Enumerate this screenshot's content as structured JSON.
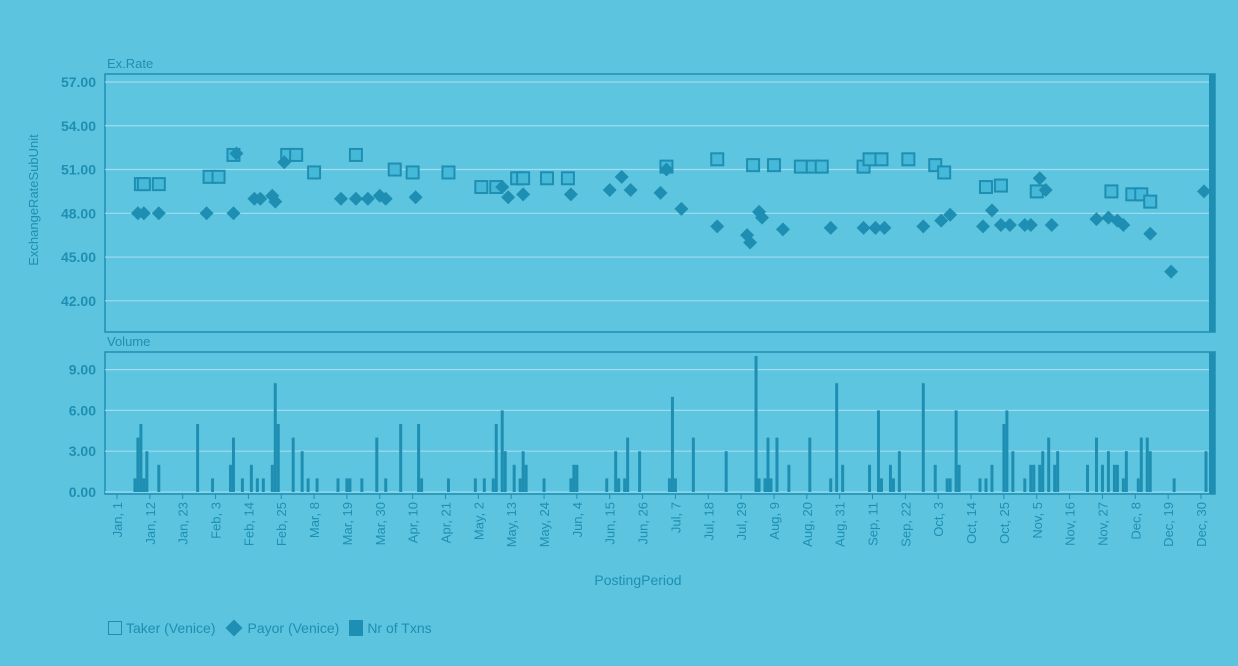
{
  "colors": {
    "background": "#5cc4df",
    "plot": "#5ec5e0",
    "accent": "#1e8fb2",
    "grid": "#9fdcee"
  },
  "chart_data": [
    {
      "type": "scatter",
      "panel_title": "Ex.Rate",
      "ylabel": "ExchangeRateSubUnit",
      "ylim": [
        40,
        57
      ],
      "yticks": [
        "42.00",
        "45.00",
        "48.00",
        "51.00",
        "54.00",
        "57.00"
      ],
      "grid": true,
      "series": [
        {
          "name": "Taker (Venice)",
          "marker": "square",
          "points": [
            [
              "Jan 9",
              50.0
            ],
            [
              "Jan 10",
              50.0
            ],
            [
              "Jan 15",
              50.0
            ],
            [
              "Feb 1",
              50.5
            ],
            [
              "Feb 4",
              50.5
            ],
            [
              "Feb 9",
              52.0
            ],
            [
              "Feb 27",
              52.0
            ],
            [
              "Mar 2",
              52.0
            ],
            [
              "Mar 8",
              50.8
            ],
            [
              "Mar 22",
              52.0
            ],
            [
              "Apr 4",
              51.0
            ],
            [
              "Apr 10",
              50.8
            ],
            [
              "Apr 22",
              50.8
            ],
            [
              "May 3",
              49.8
            ],
            [
              "May 8",
              49.8
            ],
            [
              "May 15",
              50.4
            ],
            [
              "May 17",
              50.4
            ],
            [
              "May 25",
              50.4
            ],
            [
              "Jun 1",
              50.4
            ],
            [
              "Jul 4",
              51.2
            ],
            [
              "Jul 21",
              51.7
            ],
            [
              "Aug 2",
              51.3
            ],
            [
              "Aug 9",
              51.3
            ],
            [
              "Aug 18",
              51.2
            ],
            [
              "Aug 22",
              51.2
            ],
            [
              "Aug 25",
              51.2
            ],
            [
              "Sep 8",
              51.2
            ],
            [
              "Sep 10",
              51.7
            ],
            [
              "Sep 14",
              51.7
            ],
            [
              "Sep 23",
              51.7
            ],
            [
              "Oct 2",
              51.3
            ],
            [
              "Oct 5",
              50.8
            ],
            [
              "Oct 19",
              49.8
            ],
            [
              "Oct 24",
              49.9
            ],
            [
              "Nov 5",
              49.5
            ],
            [
              "Nov 30",
              49.5
            ],
            [
              "Dec 7",
              49.3
            ],
            [
              "Dec 10",
              49.3
            ],
            [
              "Dec 13",
              48.8
            ]
          ]
        },
        {
          "name": "Payor (Venice)",
          "marker": "diamond",
          "points": [
            [
              "Jan 8",
              48.0
            ],
            [
              "Jan 10",
              48.0
            ],
            [
              "Jan 15",
              48.0
            ],
            [
              "Jan 31",
              48.0
            ],
            [
              "Feb 9",
              48.0
            ],
            [
              "Feb 10",
              52.1
            ],
            [
              "Feb 16",
              49.0
            ],
            [
              "Feb 18",
              49.0
            ],
            [
              "Feb 22",
              49.2
            ],
            [
              "Feb 23",
              48.8
            ],
            [
              "Feb 26",
              51.5
            ],
            [
              "Mar 17",
              49.0
            ],
            [
              "Mar 22",
              49.0
            ],
            [
              "Mar 26",
              49.0
            ],
            [
              "Mar 30",
              49.2
            ],
            [
              "Apr 1",
              49.0
            ],
            [
              "Apr 11",
              49.1
            ],
            [
              "May 10",
              49.8
            ],
            [
              "May 12",
              49.1
            ],
            [
              "May 17",
              49.3
            ],
            [
              "Jun 2",
              49.3
            ],
            [
              "Jun 15",
              49.6
            ],
            [
              "Jun 19",
              50.5
            ],
            [
              "Jun 22",
              49.6
            ],
            [
              "Jul 2",
              49.4
            ],
            [
              "Jul 4",
              51.0
            ],
            [
              "Jul 9",
              48.3
            ],
            [
              "Jul 21",
              47.1
            ],
            [
              "Jul 31",
              46.5
            ],
            [
              "Aug 1",
              46.0
            ],
            [
              "Aug 4",
              48.1
            ],
            [
              "Aug 5",
              47.7
            ],
            [
              "Aug 12",
              46.9
            ],
            [
              "Aug 28",
              47.0
            ],
            [
              "Sep 8",
              47.0
            ],
            [
              "Sep 12",
              47.0
            ],
            [
              "Sep 15",
              47.0
            ],
            [
              "Sep 28",
              47.1
            ],
            [
              "Oct 4",
              47.5
            ],
            [
              "Oct 7",
              47.9
            ],
            [
              "Oct 18",
              47.1
            ],
            [
              "Oct 21",
              48.2
            ],
            [
              "Oct 24",
              47.2
            ],
            [
              "Oct 27",
              47.2
            ],
            [
              "Nov 1",
              47.2
            ],
            [
              "Nov 3",
              47.2
            ],
            [
              "Nov 6",
              50.4
            ],
            [
              "Nov 8",
              49.6
            ],
            [
              "Nov 10",
              47.2
            ],
            [
              "Nov 25",
              47.6
            ],
            [
              "Nov 29",
              47.7
            ],
            [
              "Dec 2",
              47.5
            ],
            [
              "Dec 4",
              47.2
            ],
            [
              "Dec 13",
              46.6
            ],
            [
              "Dec 20",
              44.0
            ],
            [
              "Dec 31",
              49.5
            ]
          ]
        }
      ]
    },
    {
      "type": "bar",
      "panel_title": "Volume",
      "ylim": [
        0,
        10
      ],
      "yticks": [
        "0.00",
        "3.00",
        "6.00",
        "9.00"
      ],
      "grid": true,
      "series": [
        {
          "name": "Nr of Txns",
          "points": [
            [
              "Jan 7",
              1
            ],
            [
              "Jan 8",
              4
            ],
            [
              "Jan 9",
              5
            ],
            [
              "Jan 10",
              1
            ],
            [
              "Jan 11",
              3
            ],
            [
              "Jan 15",
              2
            ],
            [
              "Jan 28",
              5
            ],
            [
              "Feb 2",
              1
            ],
            [
              "Feb 8",
              2
            ],
            [
              "Feb 9",
              4
            ],
            [
              "Feb 12",
              1
            ],
            [
              "Feb 15",
              2
            ],
            [
              "Feb 17",
              1
            ],
            [
              "Feb 19",
              1
            ],
            [
              "Feb 22",
              2
            ],
            [
              "Feb 23",
              8
            ],
            [
              "Feb 24",
              5
            ],
            [
              "Mar 1",
              4
            ],
            [
              "Mar 4",
              3
            ],
            [
              "Mar 6",
              1
            ],
            [
              "Mar 9",
              1
            ],
            [
              "Mar 16",
              1
            ],
            [
              "Mar 19",
              1
            ],
            [
              "Mar 20",
              1
            ],
            [
              "Mar 24",
              1
            ],
            [
              "Mar 29",
              4
            ],
            [
              "Apr 1",
              1
            ],
            [
              "Apr 6",
              5
            ],
            [
              "Apr 12",
              5
            ],
            [
              "Apr 13",
              1
            ],
            [
              "Apr 22",
              1
            ],
            [
              "May 1",
              1
            ],
            [
              "May 4",
              1
            ],
            [
              "May 7",
              1
            ],
            [
              "May 8",
              5
            ],
            [
              "May 10",
              6
            ],
            [
              "May 11",
              3
            ],
            [
              "May 14",
              2
            ],
            [
              "May 16",
              1
            ],
            [
              "May 17",
              3
            ],
            [
              "May 18",
              2
            ],
            [
              "May 24",
              1
            ],
            [
              "Jun 2",
              1
            ],
            [
              "Jun 3",
              2
            ],
            [
              "Jun 4",
              2
            ],
            [
              "Jun 14",
              1
            ],
            [
              "Jun 17",
              3
            ],
            [
              "Jun 18",
              1
            ],
            [
              "Jun 20",
              1
            ],
            [
              "Jun 21",
              4
            ],
            [
              "Jun 25",
              3
            ],
            [
              "Jul 5",
              1
            ],
            [
              "Jul 6",
              7
            ],
            [
              "Jul 7",
              1
            ],
            [
              "Jul 13",
              4
            ],
            [
              "Jul 24",
              3
            ],
            [
              "Aug 3",
              10
            ],
            [
              "Aug 4",
              1
            ],
            [
              "Aug 6",
              1
            ],
            [
              "Aug 7",
              4
            ],
            [
              "Aug 8",
              1
            ],
            [
              "Aug 10",
              4
            ],
            [
              "Aug 14",
              2
            ],
            [
              "Aug 21",
              4
            ],
            [
              "Aug 28",
              1
            ],
            [
              "Aug 30",
              8
            ],
            [
              "Sep 1",
              2
            ],
            [
              "Sep 10",
              2
            ],
            [
              "Sep 13",
              6
            ],
            [
              "Sep 14",
              1
            ],
            [
              "Sep 17",
              2
            ],
            [
              "Sep 18",
              1
            ],
            [
              "Sep 20",
              3
            ],
            [
              "Sep 28",
              8
            ],
            [
              "Oct 2",
              2
            ],
            [
              "Oct 6",
              1
            ],
            [
              "Oct 7",
              1
            ],
            [
              "Oct 9",
              6
            ],
            [
              "Oct 10",
              2
            ],
            [
              "Oct 17",
              1
            ],
            [
              "Oct 19",
              1
            ],
            [
              "Oct 21",
              2
            ],
            [
              "Oct 25",
              5
            ],
            [
              "Oct 26",
              6
            ],
            [
              "Oct 28",
              3
            ],
            [
              "Nov 1",
              1
            ],
            [
              "Nov 3",
              2
            ],
            [
              "Nov 4",
              2
            ],
            [
              "Nov 6",
              2
            ],
            [
              "Nov 7",
              3
            ],
            [
              "Nov 9",
              4
            ],
            [
              "Nov 11",
              2
            ],
            [
              "Nov 12",
              3
            ],
            [
              "Nov 22",
              2
            ],
            [
              "Nov 25",
              4
            ],
            [
              "Nov 27",
              2
            ],
            [
              "Nov 29",
              3
            ],
            [
              "Dec 1",
              2
            ],
            [
              "Dec 2",
              2
            ],
            [
              "Dec 4",
              1
            ],
            [
              "Dec 5",
              3
            ],
            [
              "Dec 9",
              1
            ],
            [
              "Dec 10",
              4
            ],
            [
              "Dec 12",
              4
            ],
            [
              "Dec 13",
              3
            ],
            [
              "Dec 21",
              1
            ],
            [
              "Jan 1+",
              3
            ]
          ]
        }
      ]
    }
  ],
  "x_axis": {
    "label": "PostingPeriod",
    "ticks": [
      "Jan, 1",
      "Jan, 12",
      "Jan, 23",
      "Feb, 3",
      "Feb, 14",
      "Feb, 25",
      "Mar, 8",
      "Mar, 19",
      "Mar, 30",
      "Apr, 10",
      "Apr, 21",
      "May, 2",
      "May, 13",
      "May, 24",
      "Jun, 4",
      "Jun, 15",
      "Jun, 26",
      "Jul, 7",
      "Jul, 18",
      "Jul, 29",
      "Aug, 9",
      "Aug, 20",
      "Aug, 31",
      "Sep, 11",
      "Sep, 22",
      "Oct, 3",
      "Oct, 14",
      "Oct, 25",
      "Nov, 5",
      "Nov, 16",
      "Nov, 27",
      "Dec, 8",
      "Dec, 19",
      "Dec, 30"
    ]
  },
  "legend": {
    "position": "bottom-left",
    "items": [
      {
        "label": "Taker (Venice)",
        "marker": "square"
      },
      {
        "label": "Payor (Venice)",
        "marker": "diamond"
      },
      {
        "label": "Nr of Txns",
        "marker": "bar"
      }
    ]
  }
}
